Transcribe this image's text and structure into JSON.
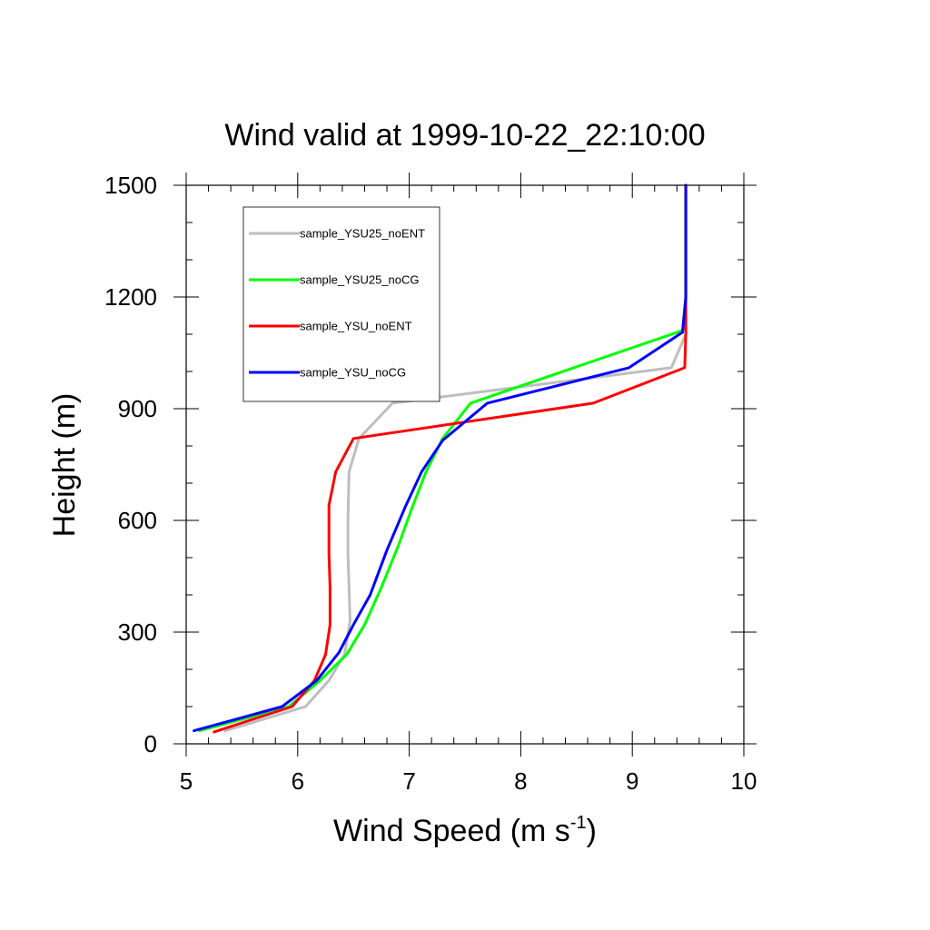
{
  "chart_data": {
    "type": "line",
    "title": "Wind valid at 1999-10-22_22:10:00",
    "xlabel": "Wind Speed (m s",
    "xlabel_sup": "-1",
    "xlabel_end": ")",
    "ylabel": "Height (m)",
    "xlim": [
      5,
      10
    ],
    "ylim": [
      0,
      1500
    ],
    "x_ticks": [
      5,
      6,
      7,
      8,
      9,
      10
    ],
    "y_ticks": [
      0,
      300,
      600,
      900,
      1200,
      1500
    ],
    "grid": false,
    "legend_position": "top-left",
    "series": [
      {
        "name": "sample_YSU25_noENT",
        "color": "#bebebe",
        "points": [
          [
            5.35,
            35
          ],
          [
            6.07,
            100
          ],
          [
            6.28,
            170
          ],
          [
            6.42,
            240
          ],
          [
            6.47,
            330
          ],
          [
            6.46,
            420
          ],
          [
            6.45,
            510
          ],
          [
            6.45,
            600
          ],
          [
            6.46,
            730
          ],
          [
            6.55,
            820
          ],
          [
            6.85,
            915
          ],
          [
            9.35,
            1010
          ],
          [
            9.48,
            1100
          ],
          [
            9.48,
            1200
          ],
          [
            9.48,
            1500
          ]
        ]
      },
      {
        "name": "sample_YSU25_noCG",
        "color": "#00ff00",
        "points": [
          [
            5.12,
            35
          ],
          [
            5.92,
            100
          ],
          [
            6.2,
            170
          ],
          [
            6.44,
            240
          ],
          [
            6.6,
            320
          ],
          [
            6.75,
            420
          ],
          [
            6.9,
            530
          ],
          [
            7.02,
            630
          ],
          [
            7.15,
            730
          ],
          [
            7.3,
            820
          ],
          [
            7.55,
            915
          ],
          [
            9.45,
            1110
          ],
          [
            9.48,
            1200
          ],
          [
            9.48,
            1500
          ]
        ]
      },
      {
        "name": "sample_YSU_noENT",
        "color": "#ff0000",
        "points": [
          [
            5.25,
            32
          ],
          [
            5.95,
            100
          ],
          [
            6.15,
            170
          ],
          [
            6.25,
            240
          ],
          [
            6.29,
            320
          ],
          [
            6.29,
            420
          ],
          [
            6.28,
            510
          ],
          [
            6.28,
            640
          ],
          [
            6.34,
            730
          ],
          [
            6.5,
            820
          ],
          [
            8.65,
            915
          ],
          [
            9.47,
            1010
          ],
          [
            9.48,
            1100
          ],
          [
            9.48,
            1200
          ],
          [
            9.48,
            1500
          ]
        ]
      },
      {
        "name": "sample_YSU_noCG",
        "color": "#0000ff",
        "points": [
          [
            5.07,
            35
          ],
          [
            5.86,
            100
          ],
          [
            6.17,
            170
          ],
          [
            6.37,
            245
          ],
          [
            6.5,
            320
          ],
          [
            6.65,
            400
          ],
          [
            6.8,
            520
          ],
          [
            6.97,
            640
          ],
          [
            7.11,
            730
          ],
          [
            7.3,
            815
          ],
          [
            7.7,
            915
          ],
          [
            8.97,
            1010
          ],
          [
            9.45,
            1105
          ],
          [
            9.48,
            1200
          ],
          [
            9.48,
            1500
          ]
        ]
      }
    ]
  }
}
